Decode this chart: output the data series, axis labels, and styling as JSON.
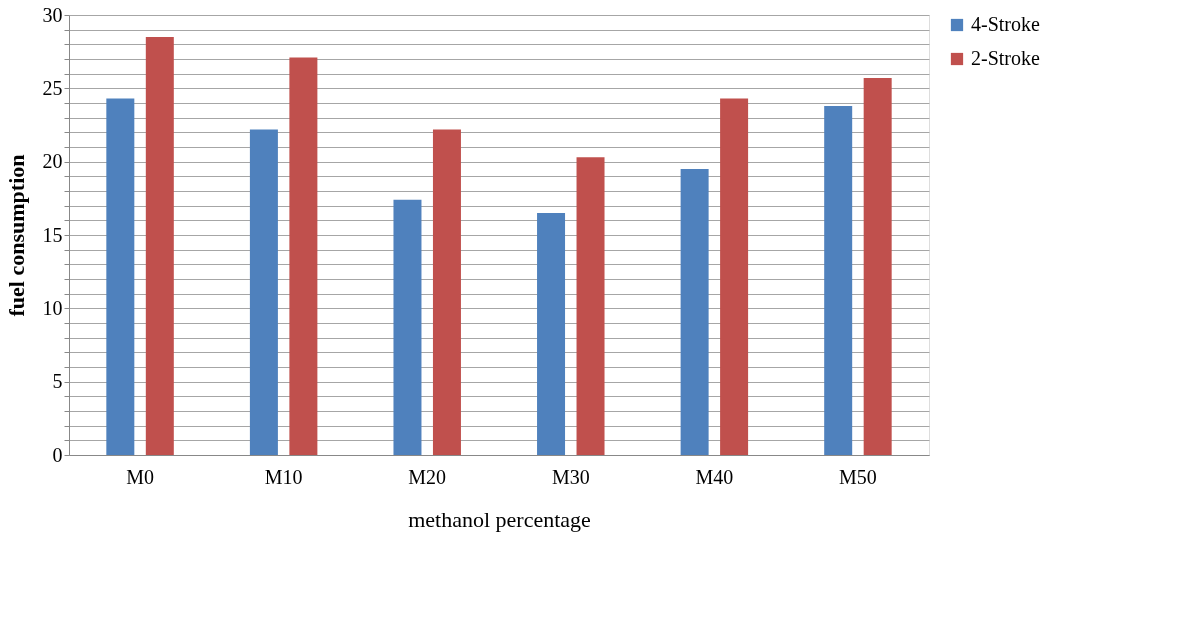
{
  "chart_data": {
    "type": "bar",
    "xlabel": "methanol percentage",
    "ylabel": "fuel  consumption",
    "categories": [
      "M0",
      "M10",
      "M20",
      "M30",
      "M40",
      "M50"
    ],
    "series": [
      {
        "name": "4-Stroke",
        "color": "#4f81bd",
        "values": [
          24.3,
          22.2,
          17.4,
          16.5,
          19.5,
          23.8
        ]
      },
      {
        "name": "2-Stroke",
        "color": "#c0504d",
        "values": [
          28.5,
          27.1,
          22.2,
          20.3,
          24.3,
          25.7
        ]
      }
    ],
    "ylim": [
      0,
      30
    ],
    "yticks": [
      0,
      {
        "value": 1,
        "label": null
      },
      {
        "value": 2,
        "label": null
      },
      {
        "value": 3,
        "label": null
      },
      {
        "value": 4,
        "label": null
      },
      5,
      {
        "value": 6,
        "label": null
      },
      {
        "value": 7,
        "label": null
      },
      {
        "value": 8,
        "label": null
      },
      {
        "value": 9,
        "label": null
      },
      10,
      {
        "value": 11,
        "label": null
      },
      {
        "value": 12,
        "label": null
      },
      {
        "value": 13,
        "label": null
      },
      {
        "value": 14,
        "label": null
      },
      15,
      {
        "value": 16,
        "label": null
      },
      {
        "value": 17,
        "label": null
      },
      {
        "value": 18,
        "label": null
      },
      {
        "value": 19,
        "label": null
      },
      20,
      {
        "value": 21,
        "label": null
      },
      {
        "value": 22,
        "label": null
      },
      {
        "value": 23,
        "label": null
      },
      {
        "value": 24,
        "label": null
      },
      25,
      {
        "value": 26,
        "label": null
      },
      {
        "value": 27,
        "label": null
      },
      {
        "value": 28,
        "label": null
      },
      {
        "value": 29,
        "label": null
      },
      30
    ],
    "grid": "y",
    "legend": "right"
  }
}
